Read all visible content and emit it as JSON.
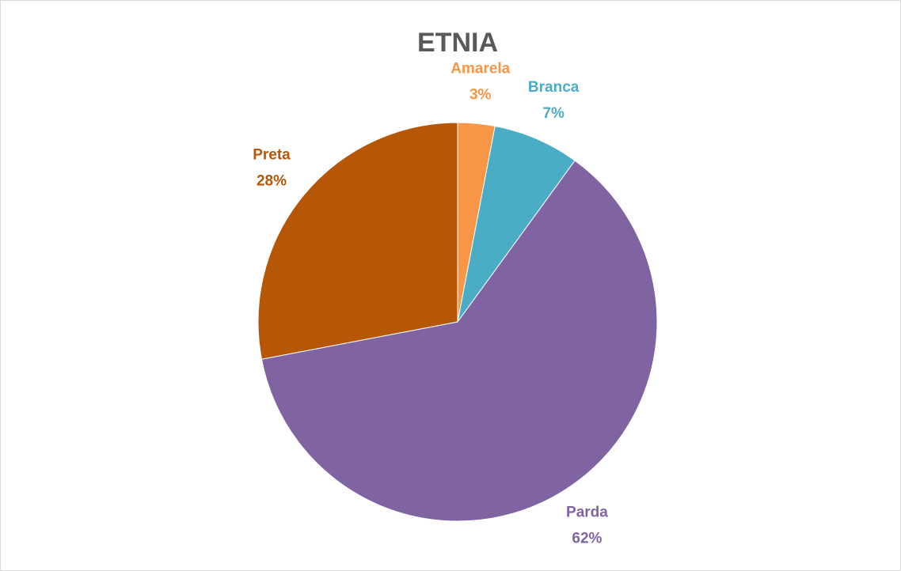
{
  "chart_data": {
    "type": "pie",
    "title": "ETNIA",
    "categories": [
      "Amarela",
      "Branca",
      "Parda",
      "Preta"
    ],
    "values": [
      3,
      7,
      62,
      28
    ],
    "value_labels": [
      "3%",
      "7%",
      "62%",
      "28%"
    ],
    "colors": [
      "#f79646",
      "#4bacc6",
      "#8064a2",
      "#b65708"
    ]
  }
}
